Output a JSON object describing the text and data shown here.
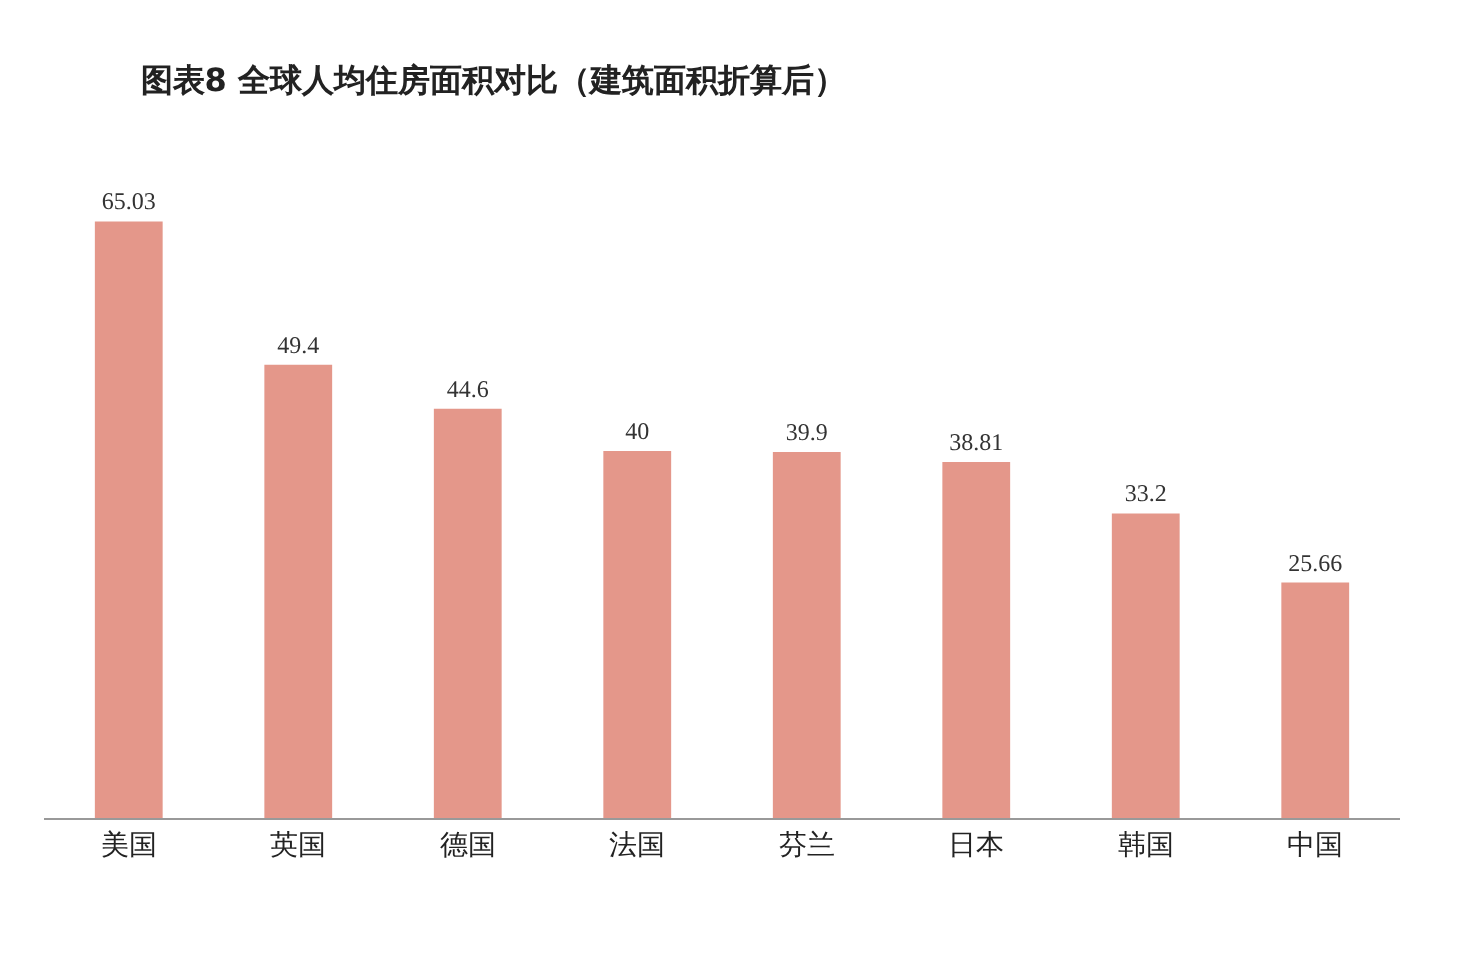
{
  "chart_data": {
    "type": "bar",
    "title": "图表8 全球人均住房面积对比（建筑面积折算后）",
    "categories": [
      "美国",
      "英国",
      "德国",
      "法国",
      "芬兰",
      "日本",
      "韩国",
      "中国"
    ],
    "values": [
      65.03,
      49.4,
      44.6,
      40,
      39.9,
      38.81,
      33.2,
      25.66
    ],
    "color": "#e4978a",
    "data_labels": true
  }
}
